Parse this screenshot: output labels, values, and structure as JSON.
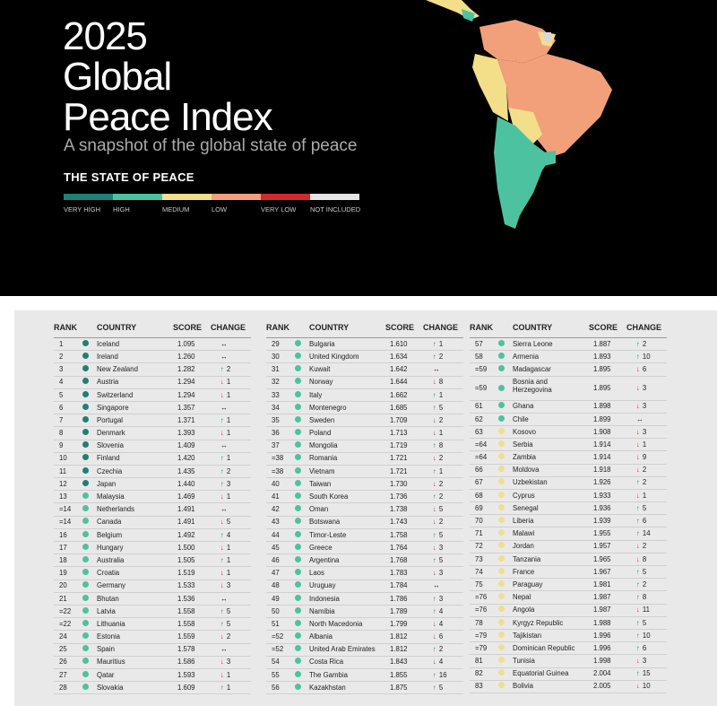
{
  "header": {
    "title_line1": "2025",
    "title_line2": "Global",
    "title_line3": "Peace Index",
    "subtitle": "A snapshot of the global state of peace",
    "state_heading": "THE STATE OF PEACE"
  },
  "legend": [
    {
      "label": "VERY HIGH",
      "color": "#1f7f79"
    },
    {
      "label": "HIGH",
      "color": "#4cc2a0"
    },
    {
      "label": "MEDIUM",
      "color": "#f3de8a"
    },
    {
      "label": "LOW",
      "color": "#f2a07a"
    },
    {
      "label": "VERY LOW",
      "color": "#d42a2a"
    },
    {
      "label": "NOT INCLUDED",
      "color": "#e6e6e6"
    }
  ],
  "table_headers": {
    "rank": "RANK",
    "country": "COUNTRY",
    "score": "SCORE",
    "change": "CHANGE"
  },
  "arrows": {
    "up": "↑",
    "down": "↓",
    "same": "↔"
  },
  "columns": [
    [
      {
        "rank": "1",
        "country": "Iceland",
        "score": "1.095",
        "dir": "same",
        "change": "",
        "level": "very_high"
      },
      {
        "rank": "2",
        "country": "Ireland",
        "score": "1.260",
        "dir": "same",
        "change": "",
        "level": "very_high"
      },
      {
        "rank": "3",
        "country": "New Zealand",
        "score": "1.282",
        "dir": "up",
        "change": "2",
        "level": "very_high"
      },
      {
        "rank": "4",
        "country": "Austria",
        "score": "1.294",
        "dir": "down",
        "change": "1",
        "level": "very_high"
      },
      {
        "rank": "5",
        "country": "Switzerland",
        "score": "1.294",
        "dir": "down",
        "change": "1",
        "level": "very_high"
      },
      {
        "rank": "6",
        "country": "Singapore",
        "score": "1.357",
        "dir": "same",
        "change": "",
        "level": "very_high"
      },
      {
        "rank": "7",
        "country": "Portugal",
        "score": "1.371",
        "dir": "up",
        "change": "1",
        "level": "very_high"
      },
      {
        "rank": "8",
        "country": "Denmark",
        "score": "1.393",
        "dir": "down",
        "change": "1",
        "level": "very_high"
      },
      {
        "rank": "9",
        "country": "Slovenia",
        "score": "1.409",
        "dir": "same",
        "change": "",
        "level": "very_high"
      },
      {
        "rank": "10",
        "country": "Finland",
        "score": "1.420",
        "dir": "up",
        "change": "1",
        "level": "very_high"
      },
      {
        "rank": "11",
        "country": "Czechia",
        "score": "1.435",
        "dir": "up",
        "change": "2",
        "level": "very_high"
      },
      {
        "rank": "12",
        "country": "Japan",
        "score": "1.440",
        "dir": "up",
        "change": "3",
        "level": "very_high"
      },
      {
        "rank": "13",
        "country": "Malaysia",
        "score": "1.469",
        "dir": "down",
        "change": "1",
        "level": "high"
      },
      {
        "rank": "=14",
        "country": "Netherlands",
        "score": "1.491",
        "dir": "same",
        "change": "",
        "level": "high"
      },
      {
        "rank": "=14",
        "country": "Canada",
        "score": "1.491",
        "dir": "down",
        "change": "5",
        "level": "high"
      },
      {
        "rank": "16",
        "country": "Belgium",
        "score": "1.492",
        "dir": "up",
        "change": "4",
        "level": "high"
      },
      {
        "rank": "17",
        "country": "Hungary",
        "score": "1.500",
        "dir": "down",
        "change": "1",
        "level": "high"
      },
      {
        "rank": "18",
        "country": "Australia",
        "score": "1.505",
        "dir": "up",
        "change": "1",
        "level": "high"
      },
      {
        "rank": "19",
        "country": "Croatia",
        "score": "1.519",
        "dir": "down",
        "change": "1",
        "level": "high"
      },
      {
        "rank": "20",
        "country": "Germany",
        "score": "1.533",
        "dir": "down",
        "change": "3",
        "level": "high"
      },
      {
        "rank": "21",
        "country": "Bhutan",
        "score": "1.536",
        "dir": "same",
        "change": "",
        "level": "high"
      },
      {
        "rank": "=22",
        "country": "Latvia",
        "score": "1.558",
        "dir": "up",
        "change": "5",
        "level": "high"
      },
      {
        "rank": "=22",
        "country": "Lithuania",
        "score": "1.558",
        "dir": "up",
        "change": "5",
        "level": "high"
      },
      {
        "rank": "24",
        "country": "Estonia",
        "score": "1.559",
        "dir": "down",
        "change": "2",
        "level": "high"
      },
      {
        "rank": "25",
        "country": "Spain",
        "score": "1.578",
        "dir": "same",
        "change": "",
        "level": "high"
      },
      {
        "rank": "26",
        "country": "Mauritius",
        "score": "1.586",
        "dir": "down",
        "change": "3",
        "level": "high"
      },
      {
        "rank": "27",
        "country": "Qatar",
        "score": "1.593",
        "dir": "down",
        "change": "1",
        "level": "high"
      },
      {
        "rank": "28",
        "country": "Slovakia",
        "score": "1.609",
        "dir": "up",
        "change": "1",
        "level": "high"
      }
    ],
    [
      {
        "rank": "29",
        "country": "Bulgaria",
        "score": "1.610",
        "dir": "up",
        "change": "1",
        "level": "high"
      },
      {
        "rank": "30",
        "country": "United Kingdom",
        "score": "1.634",
        "dir": "up",
        "change": "2",
        "level": "high"
      },
      {
        "rank": "31",
        "country": "Kuwait",
        "score": "1.642",
        "dir": "same",
        "change": "",
        "level": "high"
      },
      {
        "rank": "32",
        "country": "Norway",
        "score": "1.644",
        "dir": "down",
        "change": "8",
        "level": "high"
      },
      {
        "rank": "33",
        "country": "Italy",
        "score": "1.662",
        "dir": "up",
        "change": "1",
        "level": "high"
      },
      {
        "rank": "34",
        "country": "Montenegro",
        "score": "1.685",
        "dir": "up",
        "change": "5",
        "level": "high"
      },
      {
        "rank": "35",
        "country": "Sweden",
        "score": "1.709",
        "dir": "down",
        "change": "2",
        "level": "high"
      },
      {
        "rank": "36",
        "country": "Poland",
        "score": "1.713",
        "dir": "down",
        "change": "1",
        "level": "high"
      },
      {
        "rank": "37",
        "country": "Mongolia",
        "score": "1.719",
        "dir": "up",
        "change": "8",
        "level": "high"
      },
      {
        "rank": "=38",
        "country": "Romania",
        "score": "1.721",
        "dir": "down",
        "change": "2",
        "level": "high"
      },
      {
        "rank": "=38",
        "country": "Vietnam",
        "score": "1.721",
        "dir": "up",
        "change": "1",
        "level": "high"
      },
      {
        "rank": "40",
        "country": "Taiwan",
        "score": "1.730",
        "dir": "down",
        "change": "2",
        "level": "high"
      },
      {
        "rank": "41",
        "country": "South Korea",
        "score": "1.736",
        "dir": "up",
        "change": "2",
        "level": "high"
      },
      {
        "rank": "42",
        "country": "Oman",
        "score": "1.738",
        "dir": "down",
        "change": "5",
        "level": "high"
      },
      {
        "rank": "43",
        "country": "Botswana",
        "score": "1.743",
        "dir": "down",
        "change": "2",
        "level": "high"
      },
      {
        "rank": "44",
        "country": "Timor-Leste",
        "score": "1.758",
        "dir": "up",
        "change": "5",
        "level": "high"
      },
      {
        "rank": "45",
        "country": "Greece",
        "score": "1.764",
        "dir": "down",
        "change": "3",
        "level": "high"
      },
      {
        "rank": "46",
        "country": "Argentina",
        "score": "1.768",
        "dir": "up",
        "change": "5",
        "level": "high"
      },
      {
        "rank": "47",
        "country": "Laos",
        "score": "1.783",
        "dir": "down",
        "change": "3",
        "level": "high"
      },
      {
        "rank": "48",
        "country": "Uruguay",
        "score": "1.784",
        "dir": "same",
        "change": "",
        "level": "high"
      },
      {
        "rank": "49",
        "country": "Indonesia",
        "score": "1.786",
        "dir": "up",
        "change": "3",
        "level": "high"
      },
      {
        "rank": "50",
        "country": "Namibia",
        "score": "1.789",
        "dir": "up",
        "change": "4",
        "level": "high"
      },
      {
        "rank": "51",
        "country": "North Macedonia",
        "score": "1.799",
        "dir": "down",
        "change": "4",
        "level": "high"
      },
      {
        "rank": "=52",
        "country": "Albania",
        "score": "1.812",
        "dir": "down",
        "change": "6",
        "level": "high"
      },
      {
        "rank": "=52",
        "country": "United Arab Emirates",
        "score": "1.812",
        "dir": "up",
        "change": "2",
        "level": "high"
      },
      {
        "rank": "54",
        "country": "Costa Rica",
        "score": "1.843",
        "dir": "down",
        "change": "4",
        "level": "high"
      },
      {
        "rank": "55",
        "country": "The Gambia",
        "score": "1.855",
        "dir": "up",
        "change": "16",
        "level": "high"
      },
      {
        "rank": "56",
        "country": "Kazakhstan",
        "score": "1.875",
        "dir": "up",
        "change": "5",
        "level": "high"
      }
    ],
    [
      {
        "rank": "57",
        "country": "Sierra Leone",
        "score": "1.887",
        "dir": "up",
        "change": "2",
        "level": "high"
      },
      {
        "rank": "58",
        "country": "Armenia",
        "score": "1.893",
        "dir": "up",
        "change": "10",
        "level": "high"
      },
      {
        "rank": "=59",
        "country": "Madagascar",
        "score": "1.895",
        "dir": "down",
        "change": "6",
        "level": "high"
      },
      {
        "rank": "=59",
        "country": "Bosnia and Herzegovina",
        "score": "1.895",
        "dir": "down",
        "change": "3",
        "level": "high",
        "two": true
      },
      {
        "rank": "61",
        "country": "Ghana",
        "score": "1.898",
        "dir": "down",
        "change": "3",
        "level": "high"
      },
      {
        "rank": "62",
        "country": "Chile",
        "score": "1.899",
        "dir": "same",
        "change": "",
        "level": "high"
      },
      {
        "rank": "63",
        "country": "Kosovo",
        "score": "1.908",
        "dir": "down",
        "change": "3",
        "level": "medium"
      },
      {
        "rank": "=64",
        "country": "Serbia",
        "score": "1.914",
        "dir": "down",
        "change": "1",
        "level": "medium"
      },
      {
        "rank": "=64",
        "country": "Zambia",
        "score": "1.914",
        "dir": "down",
        "change": "9",
        "level": "medium"
      },
      {
        "rank": "66",
        "country": "Moldova",
        "score": "1.918",
        "dir": "down",
        "change": "2",
        "level": "medium"
      },
      {
        "rank": "67",
        "country": "Uzbekistan",
        "score": "1.926",
        "dir": "up",
        "change": "2",
        "level": "medium"
      },
      {
        "rank": "68",
        "country": "Cyprus",
        "score": "1.933",
        "dir": "down",
        "change": "1",
        "level": "medium"
      },
      {
        "rank": "69",
        "country": "Senegal",
        "score": "1.936",
        "dir": "up",
        "change": "5",
        "level": "medium"
      },
      {
        "rank": "70",
        "country": "Liberia",
        "score": "1.939",
        "dir": "up",
        "change": "6",
        "level": "medium"
      },
      {
        "rank": "71",
        "country": "Malawi",
        "score": "1.955",
        "dir": "up",
        "change": "14",
        "level": "medium"
      },
      {
        "rank": "72",
        "country": "Jordan",
        "score": "1.957",
        "dir": "down",
        "change": "2",
        "level": "medium"
      },
      {
        "rank": "73",
        "country": "Tanzania",
        "score": "1.965",
        "dir": "down",
        "change": "8",
        "level": "medium"
      },
      {
        "rank": "74",
        "country": "France",
        "score": "1.967",
        "dir": "up",
        "change": "5",
        "level": "medium"
      },
      {
        "rank": "75",
        "country": "Paraguay",
        "score": "1.981",
        "dir": "up",
        "change": "2",
        "level": "medium"
      },
      {
        "rank": "=76",
        "country": "Nepal",
        "score": "1.987",
        "dir": "up",
        "change": "8",
        "level": "medium"
      },
      {
        "rank": "=76",
        "country": "Angola",
        "score": "1.987",
        "dir": "down",
        "change": "11",
        "level": "medium"
      },
      {
        "rank": "78",
        "country": "Kyrgyz Republic",
        "score": "1.988",
        "dir": "up",
        "change": "5",
        "level": "medium"
      },
      {
        "rank": "=79",
        "country": "Tajikistan",
        "score": "1.996",
        "dir": "up",
        "change": "10",
        "level": "medium"
      },
      {
        "rank": "=79",
        "country": "Dominican Republic",
        "score": "1.996",
        "dir": "up",
        "change": "6",
        "level": "medium"
      },
      {
        "rank": "81",
        "country": "Tunisia",
        "score": "1.998",
        "dir": "down",
        "change": "3",
        "level": "medium"
      },
      {
        "rank": "82",
        "country": "Equatorial Guinea",
        "score": "2.004",
        "dir": "up",
        "change": "15",
        "level": "medium"
      },
      {
        "rank": "83",
        "country": "Bolivia",
        "score": "2.005",
        "dir": "down",
        "change": "10",
        "level": "medium"
      }
    ]
  ],
  "level_colors": {
    "very_high": "#1f7f79",
    "high": "#4cc2a0",
    "medium": "#f3de8a"
  }
}
